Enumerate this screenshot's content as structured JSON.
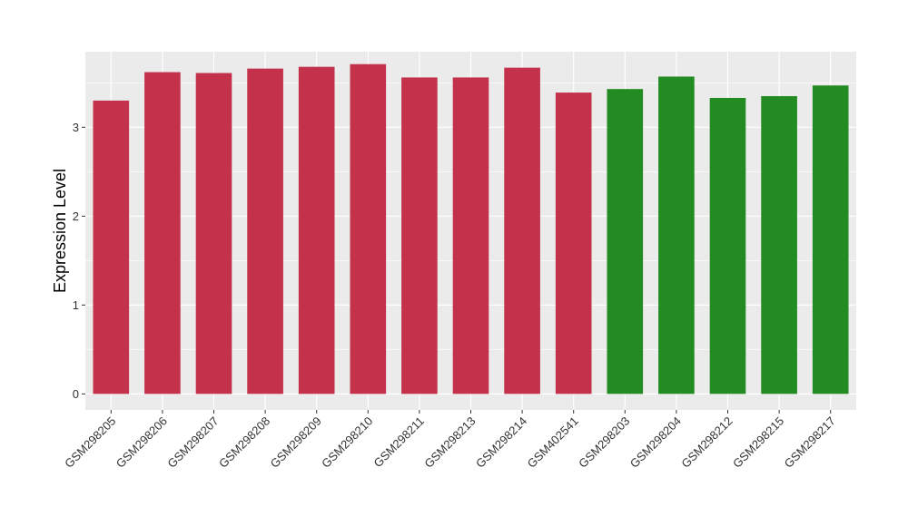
{
  "chart_data": {
    "type": "bar",
    "ylabel": "Expression Level",
    "xlabel": "",
    "ylim": [
      -0.18,
      3.85
    ],
    "yticks": [
      0,
      1,
      2,
      3
    ],
    "grid": true,
    "categories": [
      "GSM298205",
      "GSM298206",
      "GSM298207",
      "GSM298208",
      "GSM298209",
      "GSM298210",
      "GSM298211",
      "GSM298213",
      "GSM298214",
      "GSM402541",
      "GSM298203",
      "GSM298204",
      "GSM298212",
      "GSM298215",
      "GSM298217"
    ],
    "values": [
      3.3,
      3.62,
      3.61,
      3.66,
      3.68,
      3.71,
      3.56,
      3.56,
      3.67,
      3.39,
      3.43,
      3.57,
      3.33,
      3.35,
      3.47
    ],
    "group_colors": [
      "#c4314b",
      "#c4314b",
      "#c4314b",
      "#c4314b",
      "#c4314b",
      "#c4314b",
      "#c4314b",
      "#c4314b",
      "#c4314b",
      "#c4314b",
      "#228b22",
      "#228b22",
      "#228b22",
      "#228b22",
      "#228b22"
    ],
    "panel_background": "#ebebeb",
    "grid_color": "#ffffff"
  }
}
